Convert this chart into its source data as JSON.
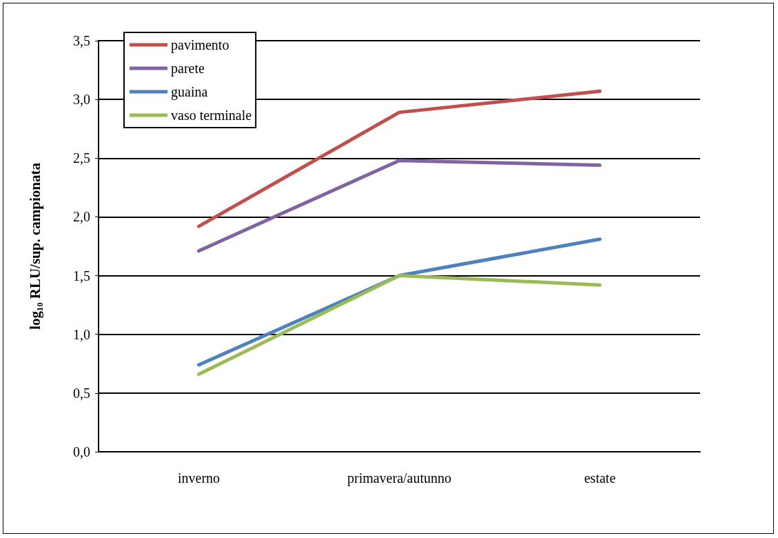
{
  "chart_data": {
    "type": "line",
    "ylabel": "log₁₀ RLU/sup. campionata",
    "categories": [
      "inverno",
      "primavera/autunno",
      "estate"
    ],
    "series": [
      {
        "name": "pavimento",
        "color": "#c0504d",
        "values": [
          1.92,
          2.89,
          3.07
        ]
      },
      {
        "name": "parete",
        "color": "#8064a2",
        "values": [
          1.71,
          2.48,
          2.44
        ]
      },
      {
        "name": "guaina",
        "color": "#4f81bd",
        "values": [
          0.74,
          1.5,
          1.81
        ]
      },
      {
        "name": "vaso terminale",
        "color": "#9bbb59",
        "values": [
          0.66,
          1.5,
          1.42
        ]
      }
    ],
    "ylim": [
      0,
      3.5
    ],
    "yticks": [
      {
        "value": 0,
        "label": "0,0"
      },
      {
        "value": 0.5,
        "label": "0,5"
      },
      {
        "value": 1,
        "label": "1,0"
      },
      {
        "value": 1.5,
        "label": "1,5"
      },
      {
        "value": 2,
        "label": "2,0"
      },
      {
        "value": 2.5,
        "label": "2,5"
      },
      {
        "value": 3,
        "label": "3,0"
      },
      {
        "value": 3.5,
        "label": "3,5"
      }
    ],
    "grid": "y",
    "legend": "top left",
    "marker": "none",
    "line_style": "solid"
  }
}
